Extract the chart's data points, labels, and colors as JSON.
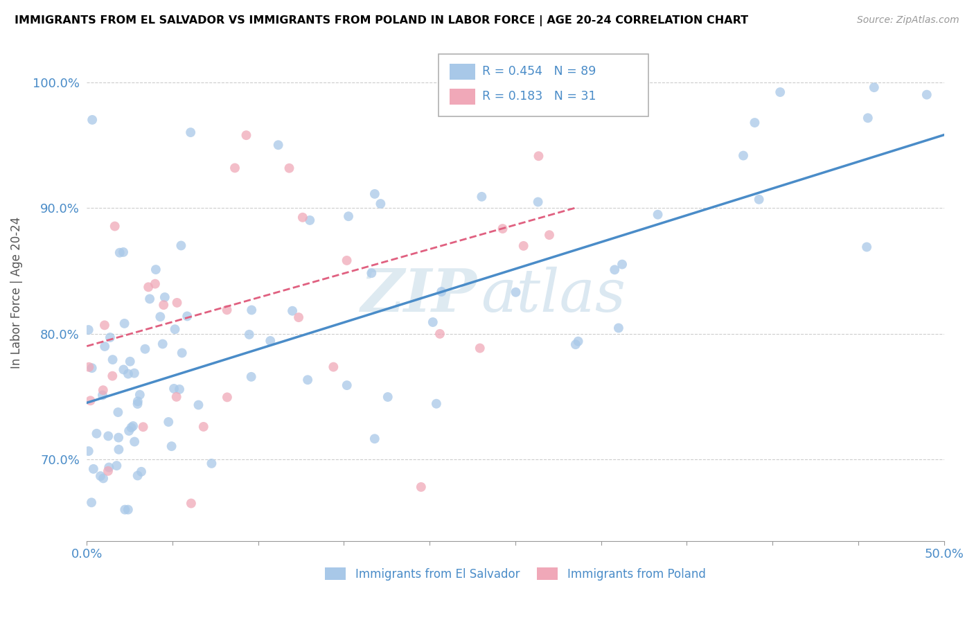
{
  "title": "IMMIGRANTS FROM EL SALVADOR VS IMMIGRANTS FROM POLAND IN LABOR FORCE | AGE 20-24 CORRELATION CHART",
  "source": "Source: ZipAtlas.com",
  "ylabel": "In Labor Force | Age 20-24",
  "r_el_salvador": 0.454,
  "n_el_salvador": 89,
  "r_poland": 0.183,
  "n_poland": 31,
  "color_es": "#a8c8e8",
  "color_pl": "#f0a8b8",
  "color_es_line": "#4a8cc8",
  "color_pl_line": "#e06080",
  "color_blue_text": "#4a8cc8",
  "xmin": 0.0,
  "xmax": 0.5,
  "ymin": 0.635,
  "ymax": 1.03,
  "ytick_vals": [
    0.7,
    0.8,
    0.9,
    1.0
  ],
  "es_line_x0": 0.0,
  "es_line_y0": 0.745,
  "es_line_x1": 0.5,
  "es_line_y1": 0.958,
  "pl_line_x0": 0.0,
  "pl_line_y0": 0.79,
  "pl_line_x1": 0.285,
  "pl_line_y1": 0.9,
  "watermark_zip": "ZIP",
  "watermark_atlas": "atlas"
}
